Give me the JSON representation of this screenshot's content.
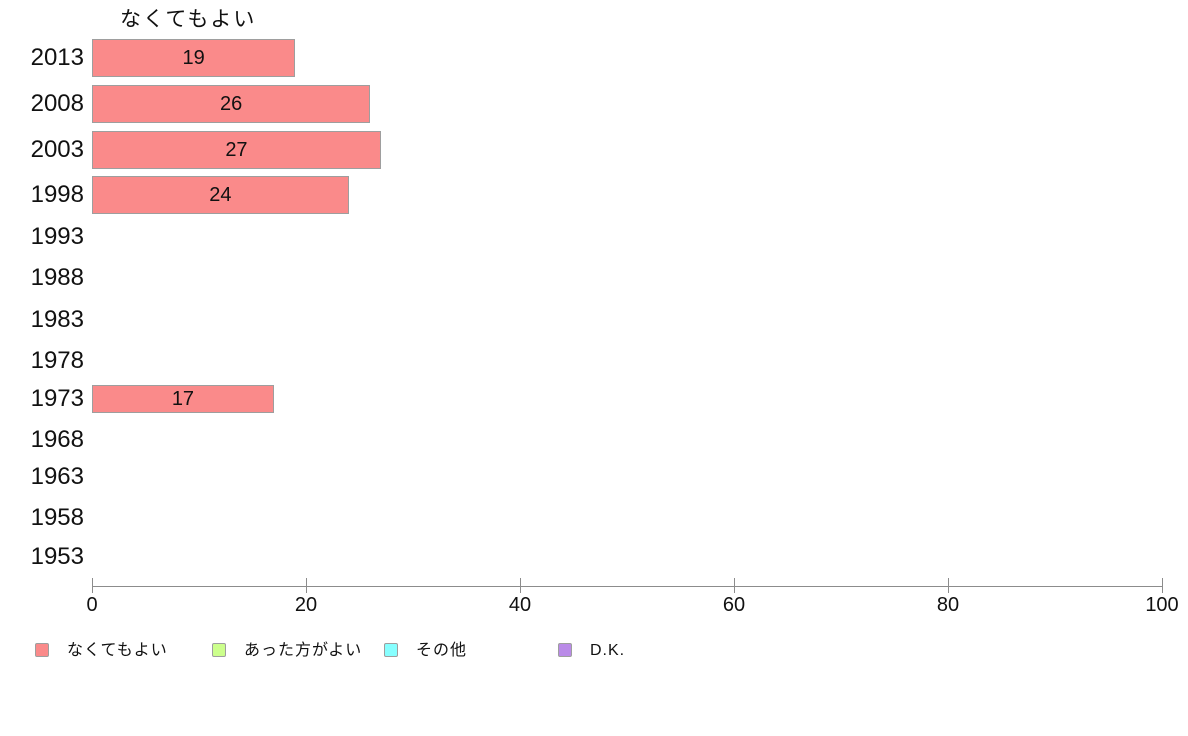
{
  "chart_data": {
    "type": "bar",
    "orientation": "horizontal",
    "title": "なくてもよい",
    "categories": [
      "2013",
      "2008",
      "2003",
      "1998",
      "1993",
      "1988",
      "1983",
      "1978",
      "1973",
      "1968",
      "1963",
      "1958",
      "1953"
    ],
    "series": [
      {
        "name": "なくてもよい",
        "color": "#FA8A8A",
        "values": [
          19,
          26,
          27,
          24,
          null,
          null,
          null,
          null,
          17,
          null,
          null,
          null,
          null
        ]
      },
      {
        "name": "あった方がよい",
        "color": "#CCFF8C",
        "values": [
          null,
          null,
          null,
          null,
          null,
          null,
          null,
          null,
          null,
          null,
          null,
          null,
          null
        ]
      },
      {
        "name": "その他",
        "color": "#87FFFF",
        "values": [
          null,
          null,
          null,
          null,
          null,
          null,
          null,
          null,
          null,
          null,
          null,
          null,
          null
        ]
      },
      {
        "name": "D.K.",
        "color": "#BA8BE8",
        "values": [
          null,
          null,
          null,
          null,
          null,
          null,
          null,
          null,
          null,
          null,
          null,
          null,
          null
        ]
      }
    ],
    "xlim": [
      0,
      100
    ],
    "x_ticks": [
      0,
      20,
      40,
      60,
      80,
      100
    ],
    "grid": false,
    "legend_position": "bottom"
  },
  "legend": {
    "items": [
      {
        "label": "なくてもよい",
        "color": "#FA8A8A"
      },
      {
        "label": "あった方がよい",
        "color": "#CCFF8C"
      },
      {
        "label": "その他",
        "color": "#87FFFF"
      },
      {
        "label": "D.K.",
        "color": "#BA8BE8"
      }
    ]
  },
  "colors": {
    "background": "#FFFFFF",
    "axis": "#8C8C8C",
    "text": "#111111",
    "bar_border": "#9E9E9E"
  }
}
